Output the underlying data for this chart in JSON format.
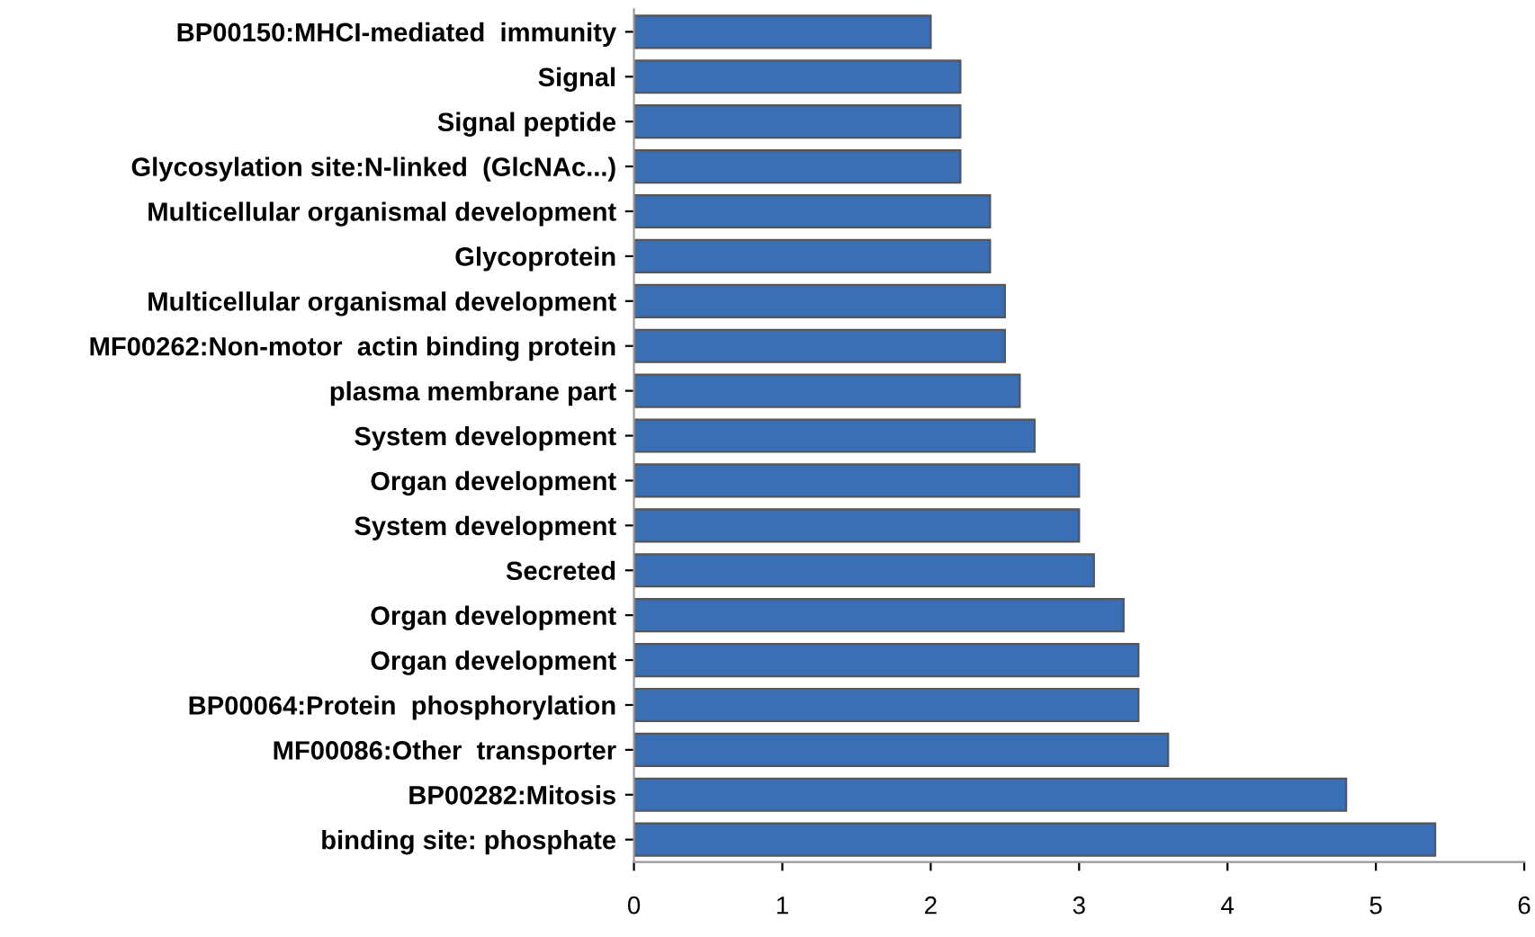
{
  "chart_data": {
    "type": "bar",
    "orientation": "horizontal",
    "categories": [
      "BP00150:MHCI-mediated  immunity",
      "Signal",
      "Signal peptide",
      "Glycosylation site:N-linked  (GlcNAc...)",
      "Multicellular organismal development",
      "Glycoprotein",
      "Multicellular organismal development",
      "MF00262:Non-motor  actin binding protein",
      "plasma membrane part",
      "System development",
      "Organ development",
      "System development",
      "Secreted",
      "Organ development",
      "Organ development",
      "BP00064:Protein  phosphorylation",
      "MF00086:Other  transporter",
      "BP00282:Mitosis",
      "binding site: phosphate"
    ],
    "values": [
      2.0,
      2.2,
      2.2,
      2.2,
      2.4,
      2.4,
      2.5,
      2.5,
      2.6,
      2.7,
      3.0,
      3.0,
      3.1,
      3.3,
      3.4,
      3.4,
      3.6,
      4.8,
      5.4
    ],
    "color": "#3a6fb5",
    "xlim": [
      0,
      6
    ],
    "xticks": [
      0,
      1,
      2,
      3,
      4,
      5,
      6
    ],
    "grid": false,
    "legend": false
  }
}
